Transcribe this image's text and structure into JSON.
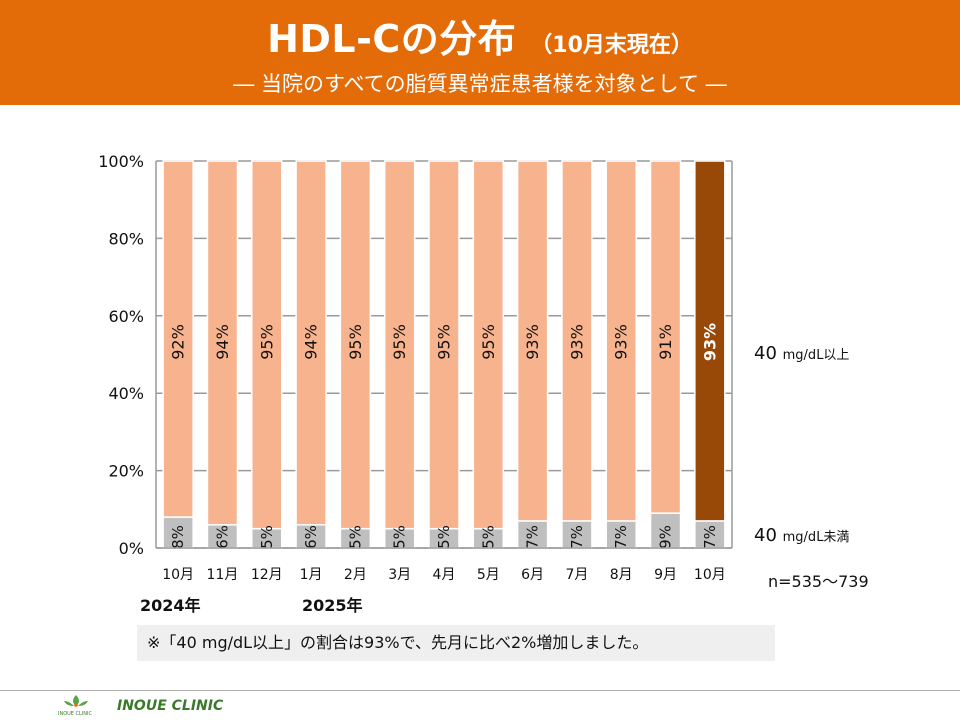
{
  "header": {
    "title": "HDL-Cの分布",
    "title_sub": "（10月末現在）",
    "subtitle": "―  当院のすべての脂質異常症患者様を対象として  ―"
  },
  "colors": {
    "header_bg": "#e36c09",
    "upper": "#f7b38d",
    "lower": "#bfbfbf",
    "current_upper": "#984807",
    "grid": "#9a9a9a"
  },
  "chart_data": {
    "type": "bar",
    "stacked": true,
    "percent_stacked": true,
    "categories": [
      "10月",
      "11月",
      "12月",
      "1月",
      "2月",
      "3月",
      "4月",
      "5月",
      "6月",
      "7月",
      "8月",
      "9月",
      "10月"
    ],
    "series": [
      {
        "name": "40 mg/dL未満",
        "values": [
          8,
          6,
          5,
          6,
          5,
          5,
          5,
          5,
          7,
          7,
          7,
          9,
          7
        ]
      },
      {
        "name": "40 mg/dL以上",
        "values": [
          92,
          94,
          95,
          94,
          95,
          95,
          95,
          95,
          93,
          93,
          93,
          91,
          93
        ]
      }
    ],
    "y_ticks": [
      "0%",
      "20%",
      "40%",
      "60%",
      "80%",
      "100%"
    ],
    "ylim": [
      0,
      100
    ],
    "grid": true,
    "highlight_category_index": 12,
    "year_labels": [
      "2024年",
      "2025年"
    ],
    "legend": {
      "upper": {
        "value": "40",
        "unit": "mg/dL以上"
      },
      "lower": {
        "value": "40",
        "unit": "mg/dL未満"
      }
    },
    "n_label": "n=535～739"
  },
  "note": "※「40 mg/dL以上」の割合は93%で、先月に比べ2%増加しました。",
  "footer": {
    "clinic": "INOUE CLINIC",
    "logo_text": "INOUE CLINIC"
  }
}
